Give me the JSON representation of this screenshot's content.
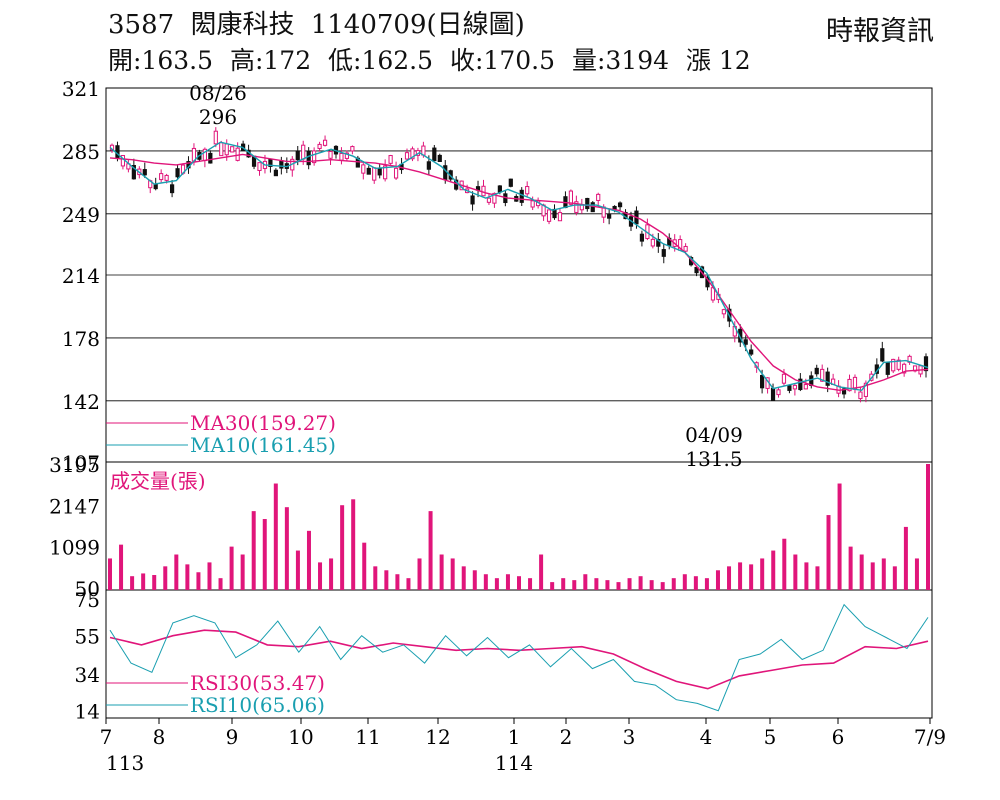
{
  "header": {
    "stock_code": "3587",
    "stock_name": "閎康科技",
    "date_code": "1140709",
    "chart_kind": "(日線圖)",
    "source": "時報資訊"
  },
  "quote": {
    "open": "開:163.5",
    "high": "高:172",
    "low": "低:162.5",
    "close": "收:170.5",
    "volume": "量:3194",
    "change": "漲 12"
  },
  "chart_data": [
    {
      "type": "candlestick",
      "panel": "price",
      "y_ticks": [
        321,
        285,
        249,
        214,
        178,
        142,
        107
      ],
      "ylim": [
        107,
        321
      ],
      "annotations": [
        {
          "label": "08/26",
          "value": "296"
        },
        {
          "label": "04/09",
          "value": "131.5"
        }
      ],
      "legend": [
        {
          "name": "MA30(159.27)",
          "color": "#e0157a"
        },
        {
          "name": "MA10(161.45)",
          "color": "#1a9fb0"
        }
      ],
      "series": [
        {
          "name": "MA30",
          "color": "#e0157a",
          "points": [
            [
              0,
              281
            ],
            [
              2,
              280
            ],
            [
              4,
              278
            ],
            [
              6,
              277
            ],
            [
              8,
              279
            ],
            [
              10,
              281
            ],
            [
              12,
              283
            ],
            [
              14,
              281
            ],
            [
              16,
              279
            ],
            [
              18,
              279
            ],
            [
              20,
              280
            ],
            [
              22,
              279
            ],
            [
              24,
              278
            ],
            [
              26,
              276
            ],
            [
              28,
              273
            ],
            [
              30,
              269
            ],
            [
              32,
              265
            ],
            [
              34,
              261
            ],
            [
              36,
              258
            ],
            [
              38,
              257
            ],
            [
              40,
              256
            ],
            [
              42,
              255
            ],
            [
              44,
              253
            ],
            [
              46,
              251
            ],
            [
              48,
              246
            ],
            [
              50,
              238
            ],
            [
              52,
              227
            ],
            [
              54,
              212
            ],
            [
              56,
              194
            ],
            [
              58,
              176
            ],
            [
              60,
              162
            ],
            [
              62,
              154
            ],
            [
              64,
              150
            ],
            [
              66,
              148
            ],
            [
              68,
              150
            ],
            [
              70,
              154
            ],
            [
              72,
              159
            ],
            [
              74,
              160
            ]
          ]
        },
        {
          "name": "MA10",
          "color": "#1a9fb0",
          "points": [
            [
              0,
              287
            ],
            [
              2,
              276
            ],
            [
              4,
              266
            ],
            [
              6,
              268
            ],
            [
              8,
              282
            ],
            [
              10,
              290
            ],
            [
              12,
              287
            ],
            [
              14,
              277
            ],
            [
              16,
              276
            ],
            [
              18,
              282
            ],
            [
              20,
              286
            ],
            [
              22,
              282
            ],
            [
              24,
              275
            ],
            [
              26,
              276
            ],
            [
              28,
              284
            ],
            [
              30,
              276
            ],
            [
              32,
              263
            ],
            [
              34,
              258
            ],
            [
              36,
              263
            ],
            [
              38,
              258
            ],
            [
              40,
              251
            ],
            [
              42,
              254
            ],
            [
              44,
              254
            ],
            [
              46,
              250
            ],
            [
              48,
              241
            ],
            [
              50,
              232
            ],
            [
              52,
              227
            ],
            [
              54,
              215
            ],
            [
              56,
              191
            ],
            [
              58,
              166
            ],
            [
              60,
              149
            ],
            [
              62,
              152
            ],
            [
              64,
              155
            ],
            [
              66,
              150
            ],
            [
              68,
              148
            ],
            [
              70,
              164
            ],
            [
              72,
              165
            ],
            [
              74,
              161
            ]
          ]
        }
      ]
    },
    {
      "type": "bar",
      "panel": "volume",
      "ylabel": "成交量(張)",
      "y_ticks": [
        3195,
        2147,
        1099,
        50
      ],
      "ylim": [
        0,
        3195
      ],
      "values": [
        800,
        1150,
        350,
        420,
        380,
        600,
        900,
        650,
        450,
        700,
        300,
        1100,
        900,
        2000,
        1800,
        2700,
        2100,
        1000,
        1500,
        700,
        800,
        2150,
        2300,
        1200,
        600,
        500,
        400,
        300,
        800,
        2000,
        900,
        800,
        600,
        500,
        400,
        300,
        400,
        350,
        300,
        900,
        200,
        300,
        250,
        400,
        300,
        250,
        200,
        300,
        350,
        250,
        200,
        300,
        400,
        350,
        300,
        500,
        600,
        700,
        650,
        800,
        1000,
        1300,
        900,
        700,
        600,
        1900,
        2700,
        1100,
        900,
        700,
        800,
        600,
        1600,
        800,
        3195
      ]
    },
    {
      "type": "line",
      "panel": "rsi",
      "y_ticks": [
        75,
        55,
        34,
        14
      ],
      "ylim": [
        10,
        80
      ],
      "legend": [
        {
          "name": "RSI30(53.47)",
          "color": "#e0157a"
        },
        {
          "name": "RSI10(65.06)",
          "color": "#1a9fb0"
        }
      ],
      "series": [
        {
          "name": "RSI30",
          "color": "#e0157a",
          "points": [
            [
              0,
              54
            ],
            [
              3,
              50
            ],
            [
              6,
              55
            ],
            [
              9,
              58
            ],
            [
              12,
              57
            ],
            [
              15,
              50
            ],
            [
              18,
              49
            ],
            [
              21,
              52
            ],
            [
              24,
              48
            ],
            [
              27,
              51
            ],
            [
              30,
              49
            ],
            [
              33,
              47
            ],
            [
              36,
              48
            ],
            [
              39,
              47
            ],
            [
              42,
              48
            ],
            [
              45,
              49
            ],
            [
              48,
              45
            ],
            [
              51,
              37
            ],
            [
              54,
              30
            ],
            [
              57,
              26
            ],
            [
              60,
              33
            ],
            [
              63,
              36
            ],
            [
              66,
              39
            ],
            [
              69,
              40
            ],
            [
              72,
              49
            ],
            [
              75,
              48
            ],
            [
              78,
              52
            ]
          ]
        },
        {
          "name": "RSI10",
          "color": "#1a9fb0",
          "points": [
            [
              0,
              58
            ],
            [
              2,
              40
            ],
            [
              4,
              35
            ],
            [
              6,
              62
            ],
            [
              8,
              66
            ],
            [
              10,
              62
            ],
            [
              12,
              43
            ],
            [
              14,
              50
            ],
            [
              16,
              63
            ],
            [
              18,
              46
            ],
            [
              20,
              60
            ],
            [
              22,
              42
            ],
            [
              24,
              55
            ],
            [
              26,
              46
            ],
            [
              28,
              50
            ],
            [
              30,
              40
            ],
            [
              32,
              55
            ],
            [
              34,
              44
            ],
            [
              36,
              54
            ],
            [
              38,
              43
            ],
            [
              40,
              50
            ],
            [
              42,
              38
            ],
            [
              44,
              48
            ],
            [
              46,
              37
            ],
            [
              48,
              42
            ],
            [
              50,
              30
            ],
            [
              52,
              28
            ],
            [
              54,
              20
            ],
            [
              56,
              18
            ],
            [
              58,
              14
            ],
            [
              60,
              42
            ],
            [
              62,
              45
            ],
            [
              64,
              53
            ],
            [
              66,
              42
            ],
            [
              68,
              47
            ],
            [
              70,
              72
            ],
            [
              72,
              60
            ],
            [
              74,
              54
            ],
            [
              76,
              48
            ],
            [
              78,
              65
            ]
          ]
        }
      ]
    }
  ],
  "x_axis": {
    "labels": [
      "7",
      "8",
      "9",
      "10",
      "11",
      "12",
      "1",
      "2",
      "3",
      "4",
      "5",
      "6",
      "7/9"
    ],
    "years": [
      "113",
      "114"
    ]
  }
}
